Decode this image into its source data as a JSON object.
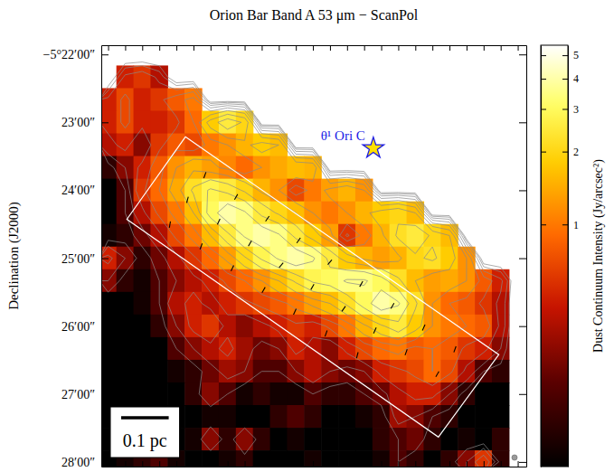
{
  "chart_data": {
    "type": "heatmap",
    "title": "Orion Bar Band A 53 μm − ScanPol",
    "y_label": "Declination (J2000)",
    "xlim": [
      32.4,
      7.5
    ],
    "ylim": [
      -5.4678,
      -5.3644
    ],
    "xticks": [
      32,
      31,
      30,
      29,
      28,
      27,
      26,
      25,
      24,
      23,
      22,
      21,
      20,
      19,
      18,
      17,
      16,
      15,
      14,
      13,
      12,
      11,
      10,
      9,
      8
    ],
    "yticks": [
      {
        "value": -5.366667,
        "label": "−5°22′00″"
      },
      {
        "value": -5.383333,
        "label": "23′00″"
      },
      {
        "value": -5.4,
        "label": "24′00″"
      },
      {
        "value": -5.416667,
        "label": "25′00″"
      },
      {
        "value": -5.433333,
        "label": "26′00″"
      },
      {
        "value": -5.45,
        "label": "27′00″"
      },
      {
        "value": -5.466667,
        "label": "28′00″"
      }
    ],
    "tick_labels": "y",
    "cell_x": [
      32,
      31,
      30,
      29,
      28,
      27,
      26,
      25,
      24,
      23,
      22,
      21,
      20,
      19,
      18,
      17,
      16,
      15,
      14,
      13,
      12,
      11,
      10,
      9,
      8
    ],
    "cell_y": [
      -5.366667,
      -5.372222,
      -5.377778,
      -5.383333,
      -5.388889,
      -5.394444,
      -5.4,
      -5.405556,
      -5.411111,
      -5.416667,
      -5.422222,
      -5.427778,
      -5.433333,
      -5.438889,
      -5.444444,
      -5.45,
      -5.455556,
      -5.461111,
      -5.466667
    ],
    "cells": [
      [
        null,
        null,
        null,
        null,
        null,
        null,
        null,
        null,
        null,
        null,
        null,
        null,
        null,
        null,
        null,
        null,
        null,
        null,
        null,
        null,
        null,
        null,
        null,
        null,
        null
      ],
      [
        null,
        0.5,
        0.6,
        0.4,
        null,
        null,
        null,
        null,
        null,
        null,
        null,
        null,
        null,
        null,
        null,
        null,
        null,
        null,
        null,
        null,
        null,
        null,
        null,
        null,
        null
      ],
      [
        0.5,
        0.7,
        0.5,
        0.6,
        0.8,
        1.0,
        null,
        null,
        null,
        null,
        null,
        null,
        null,
        null,
        null,
        null,
        null,
        null,
        null,
        null,
        null,
        null,
        null,
        null,
        null
      ],
      [
        0.5,
        0.7,
        0.5,
        0.5,
        0.6,
        0.9,
        1.8,
        2.5,
        2.0,
        null,
        null,
        null,
        null,
        null,
        null,
        null,
        null,
        null,
        null,
        null,
        null,
        null,
        null,
        null,
        null
      ],
      [
        0.4,
        0.5,
        0.3,
        0.6,
        0.8,
        0.7,
        1.0,
        1.2,
        1.5,
        1.8,
        1.6,
        null,
        null,
        null,
        null,
        null,
        null,
        null,
        null,
        null,
        null,
        null,
        null,
        null,
        null
      ],
      [
        0.15,
        0.3,
        0.5,
        0.8,
        1.2,
        1.5,
        1.3,
        1.1,
        0.9,
        1.2,
        1.4,
        1.6,
        1.5,
        null,
        null,
        null,
        null,
        null,
        null,
        null,
        null,
        null,
        null,
        null,
        null
      ],
      [
        0.1,
        0.2,
        0.6,
        0.9,
        1.4,
        2.2,
        2.8,
        2.5,
        2.0,
        1.5,
        1.2,
        0.7,
        1.0,
        1.3,
        1.5,
        1.2,
        null,
        null,
        null,
        null,
        null,
        null,
        null,
        null,
        null
      ],
      [
        0.1,
        0.2,
        0.4,
        0.7,
        1.0,
        1.6,
        3.0,
        4.0,
        3.5,
        2.5,
        2.0,
        1.6,
        1.2,
        1.0,
        1.2,
        1.5,
        1.8,
        2.0,
        1.6,
        null,
        null,
        null,
        null,
        null,
        null
      ],
      [
        0.12,
        0.15,
        0.25,
        0.4,
        0.7,
        1.0,
        1.6,
        2.5,
        3.5,
        4.0,
        3.5,
        2.5,
        1.8,
        1.3,
        0.6,
        1.0,
        1.5,
        2.2,
        2.5,
        2.0,
        1.6,
        null,
        null,
        null,
        null
      ],
      [
        0.5,
        0.3,
        0.15,
        0.25,
        0.4,
        0.6,
        0.9,
        1.3,
        2.0,
        2.8,
        3.5,
        4.0,
        3.5,
        2.5,
        1.8,
        1.5,
        1.3,
        1.5,
        2.0,
        2.2,
        1.8,
        1.2,
        null,
        null,
        null
      ],
      [
        0.3,
        0.15,
        0.12,
        0.2,
        0.3,
        0.4,
        0.5,
        0.7,
        0.9,
        1.2,
        1.6,
        2.2,
        2.8,
        3.0,
        3.5,
        3.5,
        3.0,
        2.2,
        1.6,
        1.3,
        1.4,
        1.2,
        0.8,
        0.5,
        null
      ],
      [
        0.1,
        0.1,
        0.12,
        0.2,
        0.4,
        0.5,
        0.4,
        0.5,
        0.6,
        0.7,
        0.8,
        1.0,
        1.3,
        1.6,
        2.2,
        3.0,
        4.0,
        3.5,
        2.2,
        1.2,
        0.9,
        0.8,
        0.6,
        0.4,
        null
      ],
      [
        0.1,
        0.1,
        0.1,
        0.15,
        0.3,
        0.5,
        0.6,
        0.4,
        0.3,
        0.4,
        0.5,
        0.6,
        0.5,
        0.7,
        1.0,
        1.5,
        2.0,
        2.5,
        1.8,
        1.2,
        1.0,
        0.9,
        0.8,
        0.4,
        null
      ],
      [
        0.1,
        0.1,
        0.1,
        0.1,
        0.2,
        0.3,
        0.4,
        0.5,
        0.35,
        0.25,
        0.3,
        0.5,
        0.4,
        0.3,
        0.5,
        0.7,
        0.9,
        1.0,
        0.8,
        0.9,
        0.8,
        0.6,
        0.5,
        0.3,
        null
      ],
      [
        0.1,
        0.1,
        0.1,
        0.1,
        0.12,
        0.15,
        0.25,
        0.35,
        0.3,
        0.2,
        0.2,
        0.3,
        0.4,
        0.3,
        0.25,
        0.3,
        0.5,
        0.6,
        0.7,
        0.9,
        0.7,
        0.4,
        0.2,
        0.15,
        null
      ],
      [
        0.1,
        0.1,
        0.1,
        0.1,
        0.1,
        0.15,
        0.3,
        0.2,
        0.12,
        0.15,
        0.12,
        0.12,
        0.2,
        0.15,
        0.15,
        0.2,
        0.25,
        0.4,
        0.5,
        0.5,
        0.3,
        0.15,
        0.1,
        0.1,
        null
      ],
      [
        0.1,
        0.1,
        0.1,
        0.1,
        0.1,
        0.1,
        0.12,
        0.12,
        0.1,
        0.1,
        0.15,
        0.2,
        0.15,
        0.1,
        0.1,
        0.12,
        0.15,
        0.35,
        0.3,
        0.2,
        0.15,
        0.1,
        0.1,
        0.1,
        null
      ],
      [
        0.1,
        0.1,
        0.2,
        0.12,
        0.1,
        0.12,
        0.3,
        0.15,
        0.3,
        0.15,
        0.1,
        0.12,
        0.1,
        0.1,
        0.1,
        0.1,
        0.15,
        0.2,
        0.25,
        0.15,
        0.1,
        0.12,
        0.1,
        0.15,
        null
      ],
      [
        0.1,
        0.12,
        0.15,
        0.2,
        0.12,
        0.1,
        0.1,
        0.12,
        0.15,
        0.1,
        0.1,
        0.1,
        0.12,
        0.1,
        0.1,
        0.1,
        0.12,
        0.2,
        0.15,
        0.1,
        0.15,
        0.3,
        0.6,
        0.15,
        null
      ]
    ],
    "contour_levels": [
      0.2,
      0.3,
      0.45,
      0.65,
      0.9,
      1.2,
      1.6,
      2.1,
      2.7,
      3.4
    ],
    "colorbar": {
      "label": "Dust Continuum Intensity (Jy/arcsec²)",
      "range": [
        0.1,
        5.5
      ],
      "ticks": [
        1,
        2,
        3,
        4,
        5
      ],
      "log": true
    },
    "box": [
      [
        27.47,
        -5.386889
      ],
      [
        9.11,
        -5.440333
      ],
      [
        12.65,
        -5.460556
      ],
      [
        30.9,
        -5.407117
      ]
    ],
    "vectors": {
      "ra": [
        27.35,
        26.33,
        28.38,
        25.52,
        24.5,
        26.55,
        23.69,
        22.67,
        24.72,
        21.86,
        20.84,
        22.89,
        20.03,
        19.01,
        21.06,
        18.2,
        17.17,
        19.23,
        16.37,
        15.34,
        17.4,
        14.54,
        13.51,
        12.71,
        11.68
      ],
      "dec": [
        -5.40236,
        -5.39629,
        -5.40842,
        -5.4077,
        -5.40163,
        -5.41377,
        -5.41304,
        -5.40697,
        -5.41911,
        -5.41838,
        -5.41231,
        -5.42445,
        -5.42372,
        -5.41766,
        -5.4298,
        -5.42907,
        -5.423,
        -5.43514,
        -5.43441,
        -5.42835,
        -5.44048,
        -5.43975,
        -5.43368,
        -5.4451,
        -5.43903
      ],
      "angle": [
        165,
        160,
        170,
        155,
        150,
        160,
        150,
        145,
        155,
        140,
        145,
        150,
        150,
        140,
        155,
        145,
        150,
        160,
        155,
        150,
        165,
        160,
        155,
        150,
        160
      ]
    },
    "star": {
      "label": "θ¹ Ori C",
      "ra": 16.46,
      "dec": -5.38967
    },
    "scale_bar": {
      "label": "0.1 pc",
      "length_arcsec": 42
    },
    "beam_fwhm_arcsec": 4.85
  }
}
